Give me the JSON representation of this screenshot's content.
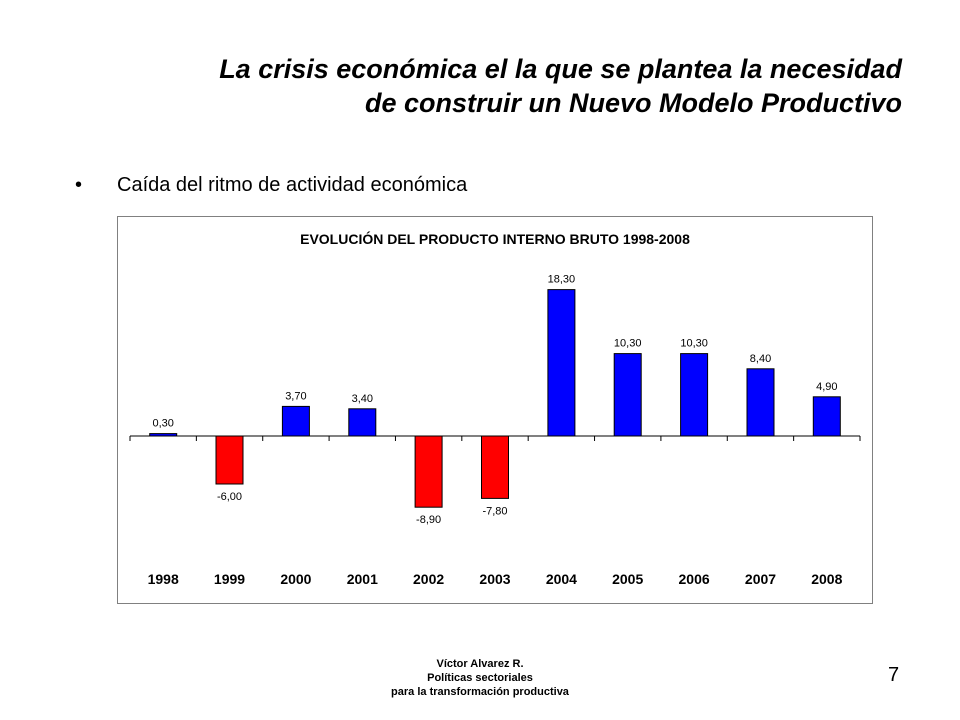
{
  "slide": {
    "title_line1": "La crisis económica el la que se plantea la necesidad",
    "title_line2": "de construir un Nuevo Modelo Productivo",
    "bullet": "Caída del ritmo de actividad económica",
    "footer_line1": "Víctor Alvarez R.",
    "footer_line2": "Políticas sectoriales",
    "footer_line3": "para la transformación productiva",
    "page_number": "7"
  },
  "chart_data": {
    "type": "bar",
    "title": "EVOLUCIÓN DEL PRODUCTO INTERNO BRUTO 1998-2008",
    "categories": [
      "1998",
      "1999",
      "2000",
      "2001",
      "2002",
      "2003",
      "2004",
      "2005",
      "2006",
      "2007",
      "2008"
    ],
    "values": [
      0.3,
      -6.0,
      3.7,
      3.4,
      -8.9,
      -7.8,
      18.3,
      10.3,
      10.3,
      8.4,
      4.9
    ],
    "labels": [
      "0,30",
      "-6,00",
      "3,70",
      "3,40",
      "-8,90",
      "-7,80",
      "18,30",
      "10,30",
      "10,30",
      "8,40",
      "4,90"
    ],
    "positive_color": "#0000ff",
    "negative_color": "#ff0000",
    "xlabel": "",
    "ylabel": "",
    "grid": false,
    "legend": "none"
  }
}
